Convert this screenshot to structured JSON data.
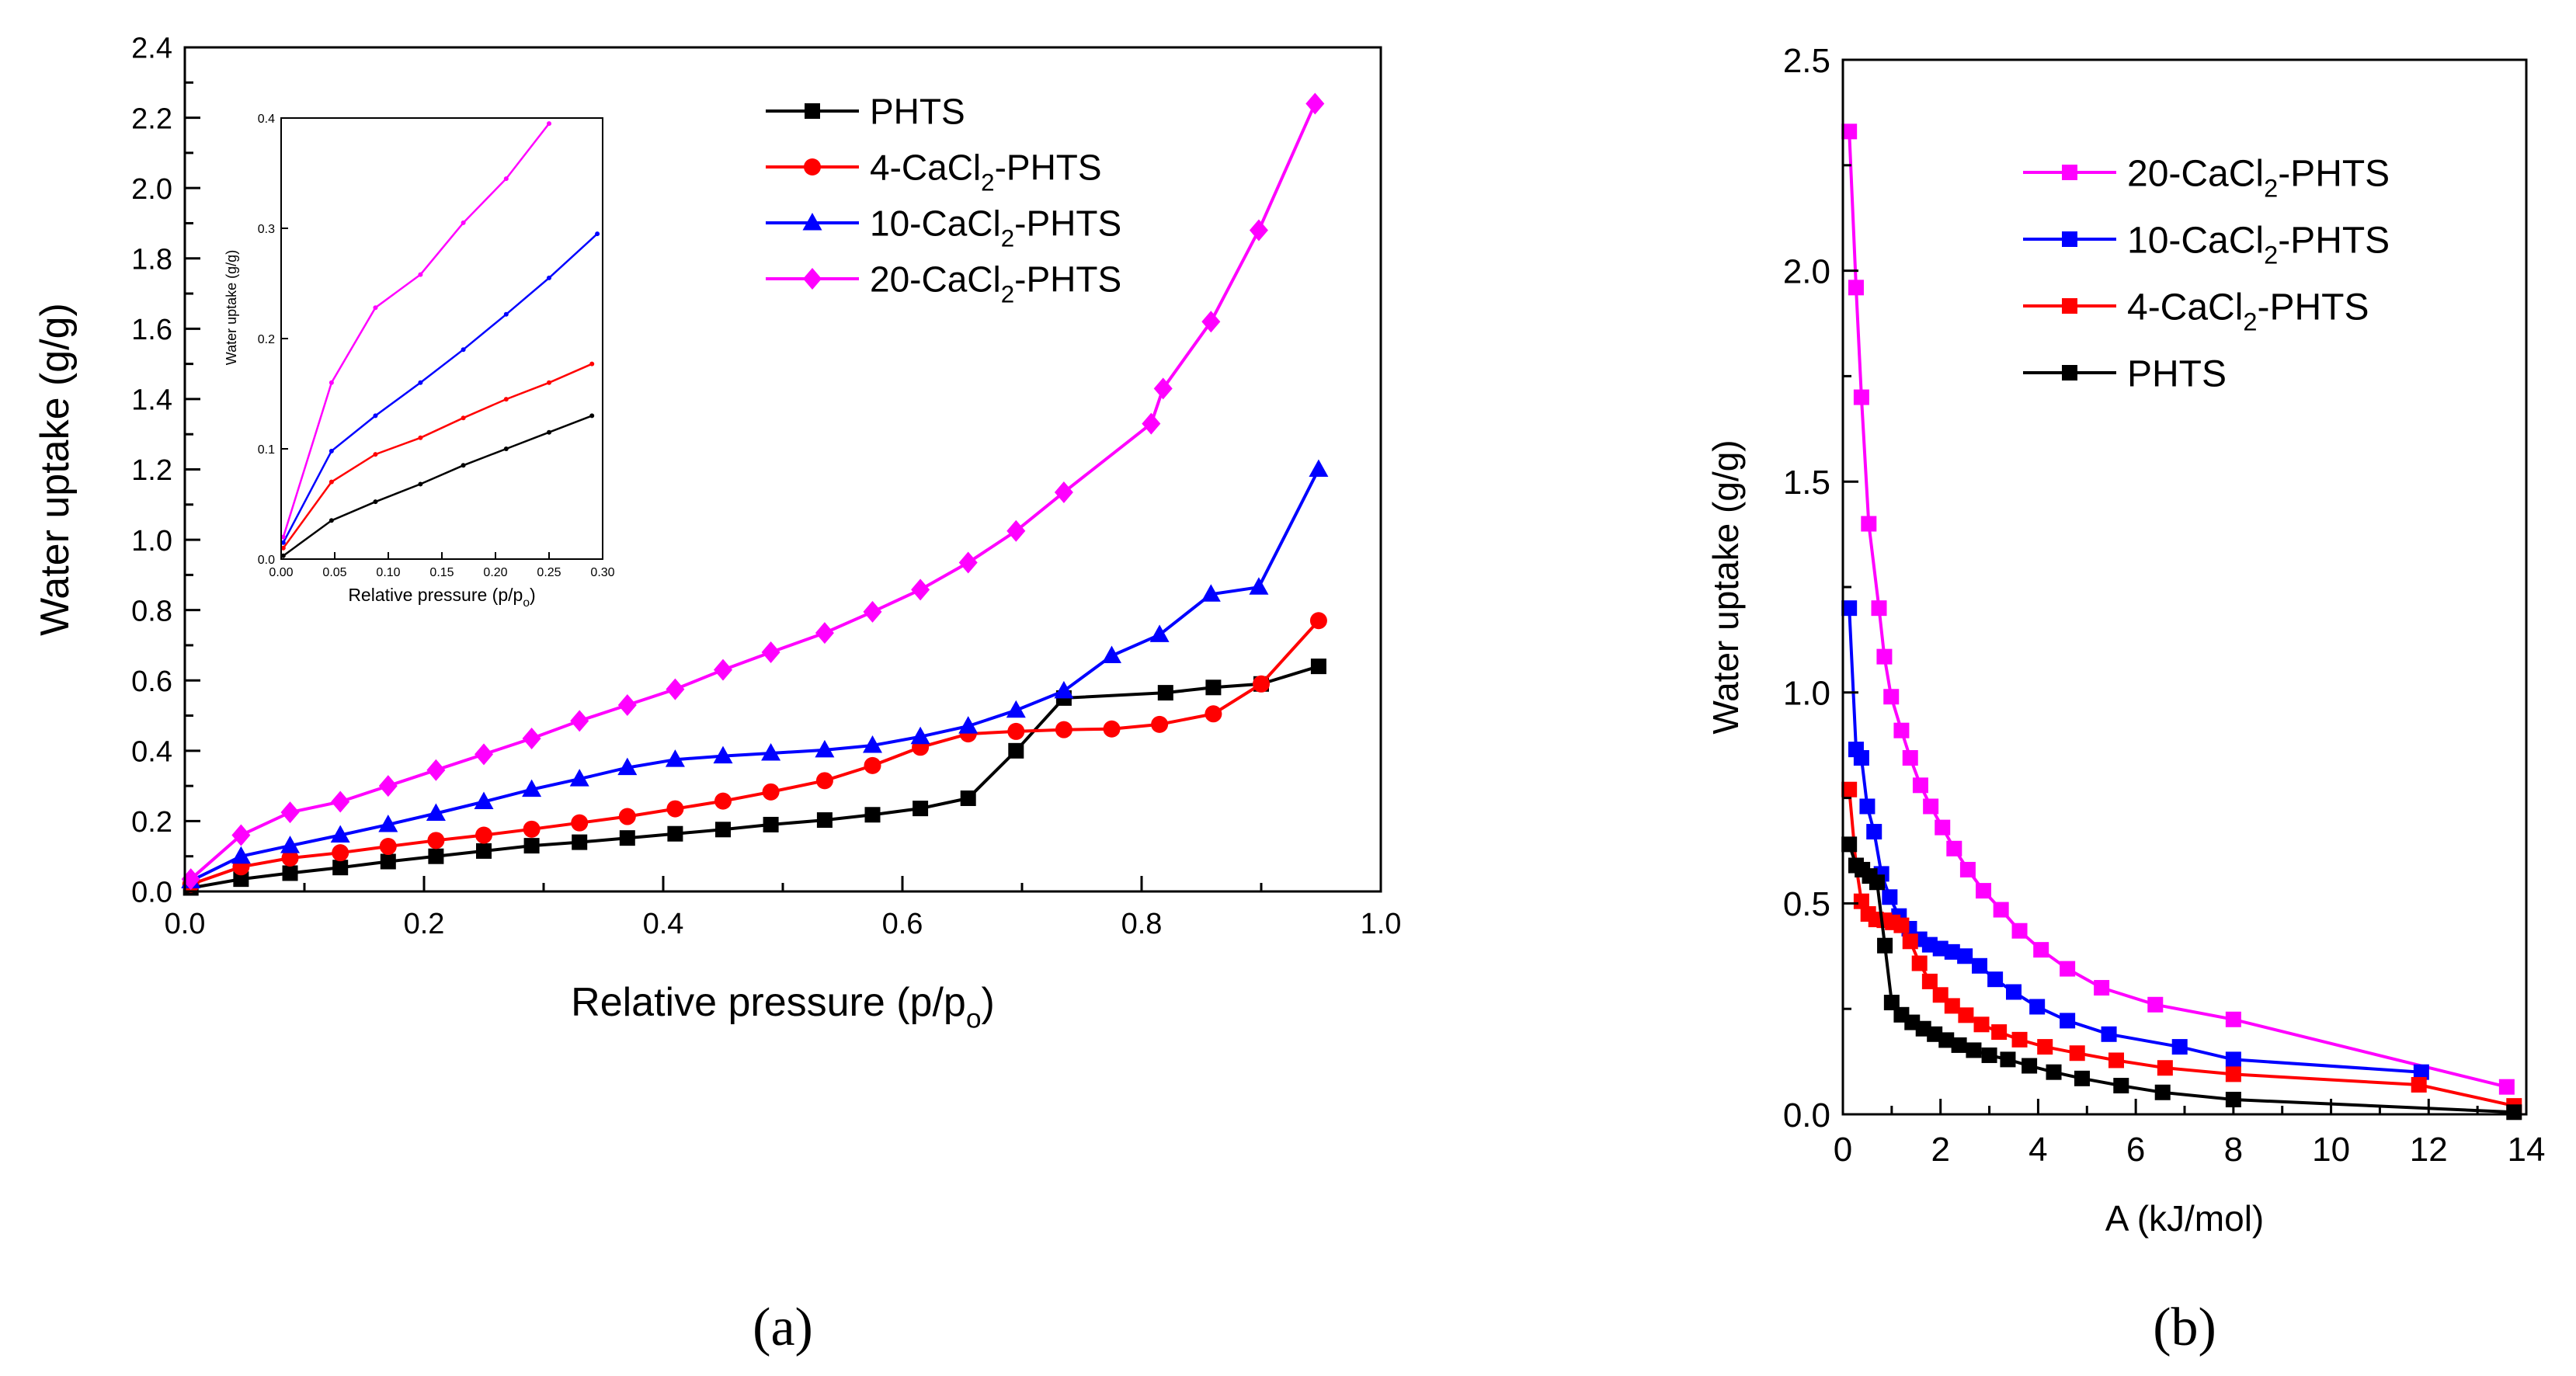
{
  "chart_data": [
    {
      "type": "line",
      "panel": "(a)",
      "xlabel": "Relative pressure (p/p",
      "xlabel_sub": "o",
      "xlabel_end": ")",
      "ylabel": "Water uptake (g/g)",
      "xlim": [
        0,
        1.0
      ],
      "ylim": [
        0,
        2.4
      ],
      "xticks": [
        "0.0",
        "0.2",
        "0.4",
        "0.6",
        "0.8",
        "1.0"
      ],
      "yticks": [
        "0.0",
        "0.2",
        "0.4",
        "0.6",
        "0.8",
        "1.0",
        "1.2",
        "1.4",
        "1.6",
        "1.8",
        "2.0",
        "2.2",
        "2.4"
      ],
      "legend_position": "top-right",
      "series": [
        {
          "name": "PHTS",
          "label_pre": "PHTS",
          "label_sub": "",
          "label_post": "",
          "color": "#000000",
          "marker": "square",
          "x": [
            0.005,
            0.047,
            0.088,
            0.13,
            0.17,
            0.21,
            0.25,
            0.29,
            0.33,
            0.37,
            0.41,
            0.45,
            0.49,
            0.535,
            0.575,
            0.615,
            0.655,
            0.695,
            0.735,
            0.82,
            0.86,
            0.9,
            0.948
          ],
          "y": [
            0.01,
            0.035,
            0.052,
            0.068,
            0.085,
            0.1,
            0.115,
            0.13,
            0.14,
            0.152,
            0.164,
            0.176,
            0.19,
            0.203,
            0.218,
            0.236,
            0.265,
            0.4,
            0.55,
            0.565,
            0.58,
            0.59,
            0.64
          ]
        },
        {
          "name": "4-CaCl2-PHTS",
          "label_pre": "4-CaCl",
          "label_sub": "2",
          "label_post": "-PHTS",
          "color": "#ff0000",
          "marker": "circle",
          "x": [
            0.005,
            0.047,
            0.088,
            0.13,
            0.17,
            0.21,
            0.25,
            0.29,
            0.33,
            0.37,
            0.41,
            0.45,
            0.49,
            0.535,
            0.575,
            0.615,
            0.655,
            0.695,
            0.735,
            0.775,
            0.815,
            0.86,
            0.9,
            0.948
          ],
          "y": [
            0.02,
            0.07,
            0.095,
            0.11,
            0.128,
            0.145,
            0.16,
            0.177,
            0.195,
            0.213,
            0.235,
            0.257,
            0.283,
            0.315,
            0.358,
            0.41,
            0.448,
            0.455,
            0.46,
            0.462,
            0.475,
            0.505,
            0.59,
            0.77
          ]
        },
        {
          "name": "10-CaCl2-PHTS",
          "label_pre": "10-CaCl",
          "label_sub": "2",
          "label_post": "-PHTS",
          "color": "#0000ff",
          "marker": "triangle",
          "x": [
            0.005,
            0.047,
            0.088,
            0.13,
            0.17,
            0.21,
            0.25,
            0.29,
            0.33,
            0.37,
            0.41,
            0.45,
            0.49,
            0.535,
            0.575,
            0.615,
            0.655,
            0.695,
            0.735,
            0.775,
            0.815,
            0.858,
            0.898,
            0.948
          ],
          "y": [
            0.03,
            0.1,
            0.13,
            0.16,
            0.19,
            0.222,
            0.255,
            0.29,
            0.32,
            0.352,
            0.375,
            0.385,
            0.393,
            0.402,
            0.415,
            0.44,
            0.47,
            0.515,
            0.57,
            0.67,
            0.73,
            0.845,
            0.865,
            1.2
          ]
        },
        {
          "name": "20-CaCl2-PHTS",
          "label_pre": "20-CaCl",
          "label_sub": "2",
          "label_post": "-PHTS",
          "color": "#ff00ff",
          "marker": "diamond",
          "x": [
            0.005,
            0.047,
            0.088,
            0.13,
            0.17,
            0.21,
            0.25,
            0.29,
            0.33,
            0.37,
            0.41,
            0.45,
            0.49,
            0.535,
            0.575,
            0.615,
            0.655,
            0.695,
            0.735,
            0.808,
            0.818,
            0.858,
            0.898,
            0.945
          ],
          "y": [
            0.035,
            0.16,
            0.225,
            0.255,
            0.3,
            0.345,
            0.39,
            0.435,
            0.485,
            0.53,
            0.575,
            0.63,
            0.68,
            0.735,
            0.795,
            0.858,
            0.935,
            1.025,
            1.135,
            1.33,
            1.43,
            1.62,
            1.88,
            2.24
          ]
        }
      ],
      "inset": {
        "xlabel": "Relative pressure (p/p",
        "xlabel_sub": "o",
        "xlabel_end": ")",
        "ylabel": "Water uptake (g/g)",
        "xlim": [
          0,
          0.3
        ],
        "ylim": [
          0,
          0.4
        ],
        "xticks": [
          "0.00",
          "0.05",
          "0.10",
          "0.15",
          "0.20",
          "0.25",
          "0.30"
        ],
        "yticks": [
          "0.0",
          "0.1",
          "0.2",
          "0.3",
          "0.4"
        ],
        "series": [
          {
            "name": "PHTS",
            "color": "#000000",
            "x": [
              0.002,
              0.047,
              0.088,
              0.13,
              0.17,
              0.21,
              0.25,
              0.29
            ],
            "y": [
              0.003,
              0.035,
              0.052,
              0.068,
              0.085,
              0.1,
              0.115,
              0.13
            ]
          },
          {
            "name": "4-CaCl2-PHTS",
            "color": "#ff0000",
            "x": [
              0.002,
              0.047,
              0.088,
              0.13,
              0.17,
              0.21,
              0.25,
              0.29
            ],
            "y": [
              0.01,
              0.07,
              0.095,
              0.11,
              0.128,
              0.145,
              0.16,
              0.177
            ]
          },
          {
            "name": "10-CaCl2-PHTS",
            "color": "#0000ff",
            "x": [
              0.002,
              0.047,
              0.088,
              0.13,
              0.17,
              0.21,
              0.25,
              0.295
            ],
            "y": [
              0.015,
              0.098,
              0.13,
              0.16,
              0.19,
              0.222,
              0.255,
              0.295
            ]
          },
          {
            "name": "20-CaCl2-PHTS",
            "color": "#ff00ff",
            "x": [
              0.002,
              0.047,
              0.088,
              0.13,
              0.17,
              0.21,
              0.25
            ],
            "y": [
              0.02,
              0.16,
              0.228,
              0.258,
              0.305,
              0.345,
              0.395
            ]
          }
        ]
      }
    },
    {
      "type": "line",
      "panel": "(b)",
      "xlabel": "A (kJ/mol)",
      "ylabel": "Water uptake (g/g)",
      "xlim": [
        0,
        14
      ],
      "ylim": [
        0,
        2.5
      ],
      "xticks": [
        "0",
        "2",
        "4",
        "6",
        "8",
        "10",
        "12",
        "14"
      ],
      "yticks": [
        "0.0",
        "0.5",
        "1.0",
        "1.5",
        "2.0",
        "2.5"
      ],
      "legend_position": "top-right",
      "series": [
        {
          "name": "20-CaCl2-PHTS",
          "label_pre": "20-CaCl",
          "label_sub": "2",
          "label_post": "-PHTS",
          "color": "#ff00ff",
          "marker": "square",
          "x": [
            0.13,
            0.27,
            0.38,
            0.53,
            0.74,
            0.85,
            0.99,
            1.2,
            1.38,
            1.59,
            1.8,
            2.04,
            2.28,
            2.56,
            2.88,
            3.24,
            3.62,
            4.06,
            4.6,
            5.3,
            6.4,
            8.0,
            13.6
          ],
          "y": [
            2.33,
            1.96,
            1.7,
            1.4,
            1.2,
            1.085,
            0.99,
            0.91,
            0.845,
            0.78,
            0.73,
            0.68,
            0.63,
            0.58,
            0.53,
            0.485,
            0.435,
            0.39,
            0.345,
            0.3,
            0.26,
            0.225,
            0.065
          ]
        },
        {
          "name": "10-CaCl2-PHTS",
          "label_pre": "10-CaCl",
          "label_sub": "2",
          "label_post": "-PHTS",
          "color": "#0000ff",
          "marker": "square",
          "x": [
            0.13,
            0.27,
            0.38,
            0.5,
            0.64,
            0.79,
            0.96,
            1.15,
            1.36,
            1.57,
            1.78,
            2.0,
            2.24,
            2.5,
            2.8,
            3.12,
            3.5,
            3.98,
            4.6,
            5.45,
            6.9,
            8.0,
            11.85
          ],
          "y": [
            1.2,
            0.865,
            0.845,
            0.73,
            0.67,
            0.57,
            0.515,
            0.47,
            0.44,
            0.415,
            0.402,
            0.393,
            0.385,
            0.375,
            0.352,
            0.32,
            0.29,
            0.255,
            0.222,
            0.19,
            0.16,
            0.13,
            0.1
          ]
        },
        {
          "name": "4-CaCl2-PHTS",
          "label_pre": "4-CaCl",
          "label_sub": "2",
          "label_post": "-PHTS",
          "color": "#ff0000",
          "marker": "square",
          "x": [
            0.13,
            0.27,
            0.38,
            0.52,
            0.68,
            0.85,
            1.02,
            1.2,
            1.38,
            1.57,
            1.78,
            2.0,
            2.24,
            2.52,
            2.84,
            3.2,
            3.62,
            4.14,
            4.8,
            5.6,
            6.6,
            8.0,
            11.8,
            13.75
          ],
          "y": [
            0.77,
            0.59,
            0.505,
            0.475,
            0.462,
            0.46,
            0.455,
            0.448,
            0.41,
            0.358,
            0.315,
            0.283,
            0.257,
            0.235,
            0.213,
            0.195,
            0.177,
            0.16,
            0.145,
            0.128,
            0.11,
            0.095,
            0.07,
            0.02
          ]
        },
        {
          "name": "PHTS",
          "label_pre": "PHTS",
          "label_sub": "",
          "label_post": "",
          "color": "#000000",
          "marker": "square",
          "x": [
            0.13,
            0.27,
            0.4,
            0.55,
            0.7,
            0.86,
            1.0,
            1.2,
            1.42,
            1.65,
            1.88,
            2.12,
            2.38,
            2.68,
            3.0,
            3.38,
            3.82,
            4.32,
            4.9,
            5.7,
            6.55,
            8.0,
            13.75
          ],
          "y": [
            0.64,
            0.59,
            0.58,
            0.565,
            0.55,
            0.4,
            0.265,
            0.236,
            0.218,
            0.203,
            0.19,
            0.176,
            0.164,
            0.152,
            0.14,
            0.13,
            0.115,
            0.1,
            0.085,
            0.068,
            0.052,
            0.035,
            0.005
          ]
        }
      ]
    }
  ]
}
